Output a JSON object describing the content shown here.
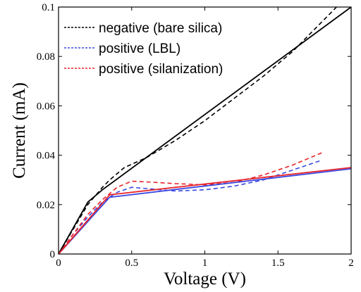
{
  "chart_data": {
    "type": "line",
    "xlabel": "Voltage (V)",
    "ylabel": "Current (mA)",
    "xlim": [
      0,
      2
    ],
    "ylim": [
      0,
      0.1
    ],
    "x_ticks": [
      {
        "value": 0,
        "label": "0"
      },
      {
        "value": 0.5,
        "label": "0.5"
      },
      {
        "value": 1,
        "label": "1"
      },
      {
        "value": 1.5,
        "label": "1.5"
      },
      {
        "value": 2,
        "label": "2"
      }
    ],
    "y_ticks": [
      {
        "value": 0,
        "label": "0"
      },
      {
        "value": 0.02,
        "label": "0.02"
      },
      {
        "value": 0.04,
        "label": "0.04"
      },
      {
        "value": 0.06,
        "label": "0.06"
      },
      {
        "value": 0.08,
        "label": "0.08"
      },
      {
        "value": 0.1,
        "label": "0.1"
      }
    ],
    "legend_position": "top-left",
    "series": [
      {
        "name": "negative (bare silica)",
        "color": "#000000",
        "style": "dashed",
        "legend": true,
        "x": [
          0,
          0.1,
          0.2,
          0.3,
          0.35,
          0.45,
          0.6,
          0.8,
          1.0,
          1.2,
          1.4,
          1.6,
          1.8,
          1.9
        ],
        "y": [
          0,
          0.01,
          0.02,
          0.027,
          0.03,
          0.035,
          0.039,
          0.046,
          0.054,
          0.063,
          0.072,
          0.082,
          0.094,
          0.1
        ]
      },
      {
        "name": "positive (LBL)",
        "color": "#3a48e0",
        "style": "dashed",
        "legend": true,
        "x": [
          0,
          0.1,
          0.2,
          0.3,
          0.4,
          0.5,
          0.6,
          0.8,
          1.0,
          1.2,
          1.4,
          1.6,
          1.8
        ],
        "y": [
          0,
          0.008,
          0.015,
          0.021,
          0.025,
          0.027,
          0.0265,
          0.0255,
          0.026,
          0.0275,
          0.03,
          0.034,
          0.038
        ]
      },
      {
        "name": "positive (silanization)",
        "color": "#e8232a",
        "style": "dashed",
        "legend": true,
        "x": [
          0,
          0.1,
          0.2,
          0.3,
          0.4,
          0.5,
          0.6,
          0.8,
          1.0,
          1.2,
          1.4,
          1.6,
          1.8
        ],
        "y": [
          0,
          0.008,
          0.016,
          0.022,
          0.027,
          0.0295,
          0.0292,
          0.0285,
          0.028,
          0.029,
          0.032,
          0.036,
          0.041
        ]
      },
      {
        "color": "#000000",
        "style": "solid",
        "legend": false,
        "x": [
          0,
          0.2,
          0.3,
          2.0
        ],
        "y": [
          0,
          0.021,
          0.026,
          0.1
        ]
      },
      {
        "color": "#3a48e0",
        "style": "solid",
        "legend": false,
        "x": [
          0,
          0.35,
          2.0
        ],
        "y": [
          0,
          0.023,
          0.0345
        ]
      },
      {
        "color": "#e8232a",
        "style": "solid",
        "legend": false,
        "x": [
          0,
          0.35,
          2.0
        ],
        "y": [
          0,
          0.024,
          0.035
        ]
      }
    ]
  }
}
